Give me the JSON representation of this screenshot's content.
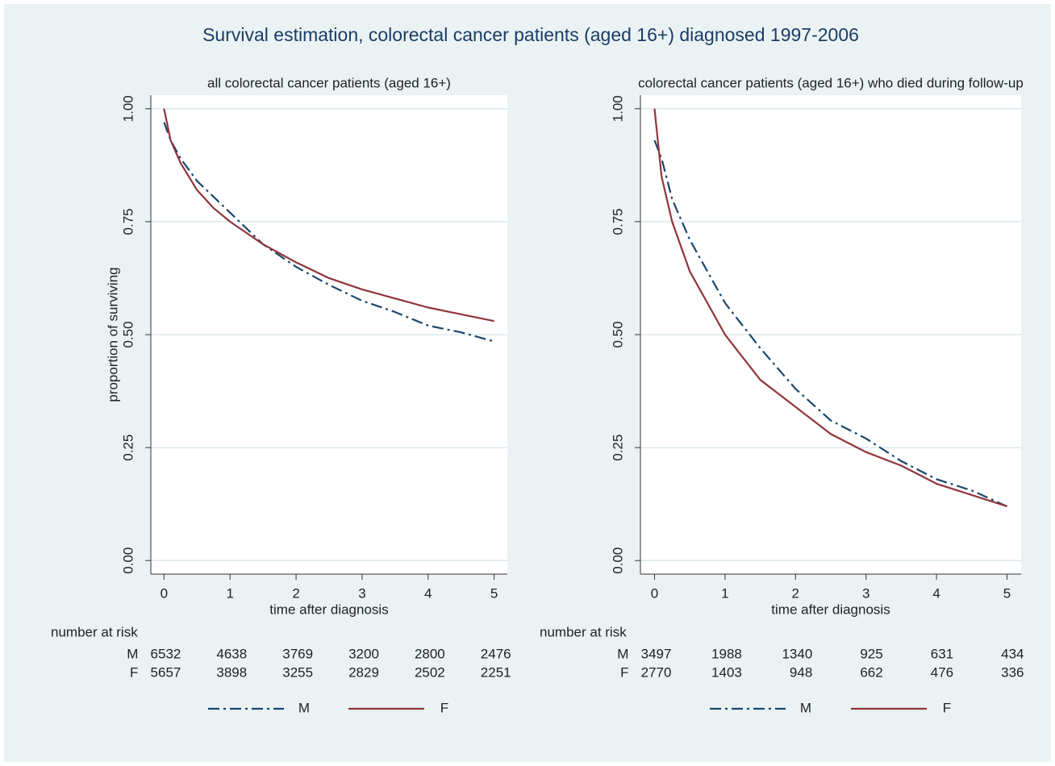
{
  "title": "Survival estimation, colorectal cancer patients (aged 16+) diagnosed 1997-2006",
  "chart_data": [
    {
      "type": "line",
      "title": "all colorectal cancer patients (aged 16+)",
      "xlabel": "time after diagnosis",
      "ylabel": "proportion of surviving",
      "x": [
        0,
        0.1,
        0.25,
        0.5,
        0.75,
        1,
        1.5,
        2,
        2.5,
        3,
        3.5,
        4,
        4.5,
        5
      ],
      "series": [
        {
          "name": "M",
          "color": "#1a476f",
          "dash": "dash-dot",
          "values": [
            0.97,
            0.93,
            0.89,
            0.84,
            0.805,
            0.77,
            0.7,
            0.65,
            0.61,
            0.575,
            0.55,
            0.52,
            0.505,
            0.485
          ]
        },
        {
          "name": "F",
          "color": "#90353b",
          "dash": "solid",
          "values": [
            1.0,
            0.93,
            0.88,
            0.82,
            0.78,
            0.75,
            0.7,
            0.66,
            0.625,
            0.6,
            0.58,
            0.56,
            0.545,
            0.53
          ]
        }
      ],
      "xlim": [
        -0.2,
        5.2
      ],
      "ylim": [
        -0.03,
        1.03
      ],
      "xticks": [
        0,
        1,
        2,
        3,
        4,
        5
      ],
      "yticks": [
        {
          "value": 0,
          "label": "0.00"
        },
        {
          "value": 0.25,
          "label": "0.25"
        },
        {
          "value": 0.5,
          "label": "0.50"
        },
        {
          "value": 0.75,
          "label": "0.75"
        },
        {
          "value": 1,
          "label": "1.00"
        }
      ],
      "grid": true,
      "risk_table": {
        "label": "number at risk",
        "rows": [
          {
            "group": "M",
            "values": [
              6532,
              4638,
              3769,
              3200,
              2800,
              2476
            ]
          },
          {
            "group": "F",
            "values": [
              5657,
              3898,
              3255,
              2829,
              2502,
              2251
            ]
          }
        ]
      }
    },
    {
      "type": "line",
      "title": "colorectal cancer patients (aged 16+) who died during follow-up",
      "xlabel": "time after diagnosis",
      "x": [
        0,
        0.1,
        0.25,
        0.5,
        0.75,
        1,
        1.5,
        2,
        2.5,
        3,
        3.5,
        4,
        4.5,
        5
      ],
      "series": [
        {
          "name": "M",
          "color": "#1a476f",
          "dash": "dash-dot",
          "values": [
            0.93,
            0.89,
            0.8,
            0.71,
            0.64,
            0.57,
            0.47,
            0.38,
            0.31,
            0.27,
            0.22,
            0.18,
            0.155,
            0.12
          ]
        },
        {
          "name": "F",
          "color": "#90353b",
          "dash": "solid",
          "values": [
            1.0,
            0.85,
            0.75,
            0.64,
            0.57,
            0.5,
            0.4,
            0.34,
            0.28,
            0.24,
            0.21,
            0.17,
            0.145,
            0.12
          ]
        }
      ],
      "xlim": [
        -0.2,
        5.2
      ],
      "ylim": [
        -0.03,
        1.03
      ],
      "xticks": [
        0,
        1,
        2,
        3,
        4,
        5
      ],
      "yticks": [
        {
          "value": 0,
          "label": "0.00"
        },
        {
          "value": 0.25,
          "label": "0.25"
        },
        {
          "value": 0.5,
          "label": "0.50"
        },
        {
          "value": 0.75,
          "label": "0.75"
        },
        {
          "value": 1,
          "label": "1.00"
        }
      ],
      "grid": true,
      "risk_table": {
        "label": "number at risk",
        "rows": [
          {
            "group": "M",
            "values": [
              3497,
              1988,
              1340,
              925,
              631,
              434
            ]
          },
          {
            "group": "F",
            "values": [
              2770,
              1403,
              948,
              662,
              476,
              336
            ]
          }
        ]
      }
    }
  ]
}
